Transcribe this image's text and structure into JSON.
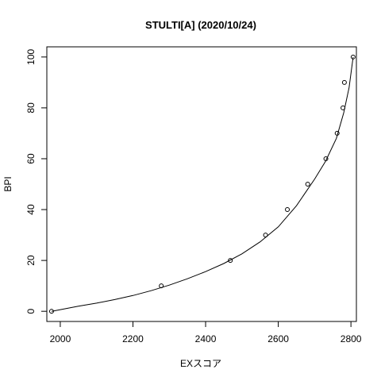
{
  "chart_data": {
    "type": "scatter",
    "title": "STULTI[A] (2020/10/24)",
    "xlabel": "EXスコア",
    "ylabel": "BPI",
    "xlim": [
      1963,
      2815
    ],
    "ylim": [
      -4,
      104
    ],
    "x_ticks": [
      2000,
      2200,
      2400,
      2600,
      2800
    ],
    "x_tick_labels": [
      "2000",
      "2200",
      "2400",
      "2600",
      "2800"
    ],
    "y_ticks": [
      0,
      20,
      40,
      60,
      80,
      100
    ],
    "y_tick_labels": [
      "0",
      "20",
      "40",
      "60",
      "80",
      "100"
    ],
    "grid": false,
    "points": [
      {
        "x": 1976,
        "y": 0
      },
      {
        "x": 2278,
        "y": 10
      },
      {
        "x": 2468,
        "y": 20
      },
      {
        "x": 2565,
        "y": 30
      },
      {
        "x": 2625,
        "y": 40
      },
      {
        "x": 2681,
        "y": 50
      },
      {
        "x": 2731,
        "y": 60
      },
      {
        "x": 2762,
        "y": 70
      },
      {
        "x": 2778,
        "y": 80
      },
      {
        "x": 2782,
        "y": 90
      },
      {
        "x": 2806,
        "y": 100
      }
    ],
    "fit_curve": [
      [
        1976,
        0
      ],
      [
        2050,
        2
      ],
      [
        2100,
        3.2
      ],
      [
        2150,
        4.6
      ],
      [
        2200,
        6.2
      ],
      [
        2250,
        8.1
      ],
      [
        2300,
        10.3
      ],
      [
        2350,
        12.8
      ],
      [
        2400,
        15.6
      ],
      [
        2450,
        18.8
      ],
      [
        2500,
        22.6
      ],
      [
        2550,
        27.3
      ],
      [
        2600,
        33.2
      ],
      [
        2650,
        41.5
      ],
      [
        2700,
        52
      ],
      [
        2730,
        59
      ],
      [
        2760,
        68
      ],
      [
        2780,
        78
      ],
      [
        2795,
        88
      ],
      [
        2806,
        100
      ]
    ]
  }
}
